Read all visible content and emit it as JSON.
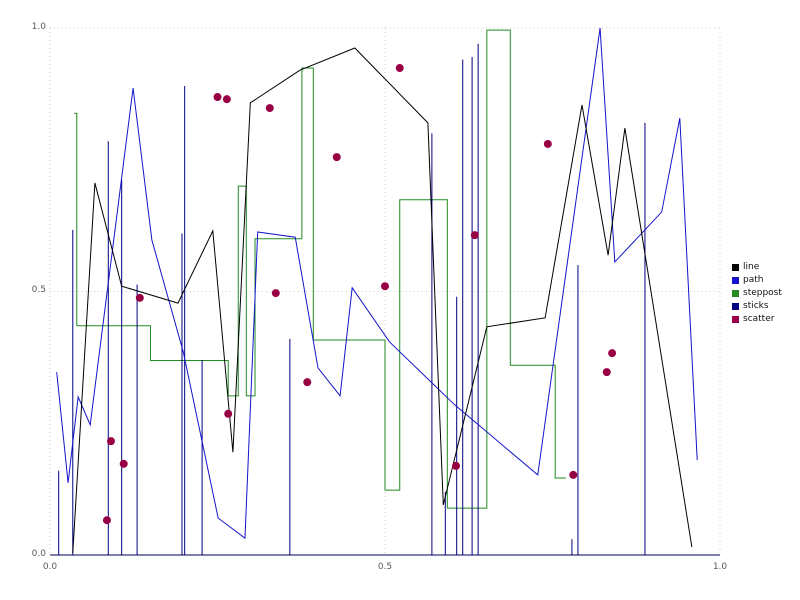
{
  "chart_data": {
    "type": "line",
    "title": "",
    "xlabel": "",
    "ylabel": "",
    "xlim": [
      0.0,
      1.0
    ],
    "ylim": [
      0.0,
      1.0
    ],
    "xticks": [
      "0.0",
      "0.5",
      "1.0"
    ],
    "yticks": [
      "0.0",
      "0.5",
      "1.0"
    ],
    "grid": "dotted",
    "grid_color": "#c9cfc9",
    "axis_color": "#000060",
    "legend_position": "right",
    "series": [
      {
        "name": "line",
        "type": "line",
        "color": "#000000",
        "x": [
          0.034,
          0.067,
          0.107,
          0.191,
          0.243,
          0.273,
          0.299,
          0.373,
          0.455,
          0.564,
          0.587,
          0.652,
          0.739,
          0.794,
          0.833,
          0.858,
          0.958
        ],
        "y": [
          0.004,
          0.706,
          0.51,
          0.478,
          0.615,
          0.195,
          0.858,
          0.92,
          0.962,
          0.82,
          0.095,
          0.433,
          0.45,
          0.854,
          0.569,
          0.81,
          0.015
        ]
      },
      {
        "name": "path",
        "type": "line",
        "color": "#1414cc",
        "x": [
          0.01,
          0.027,
          0.042,
          0.06,
          0.124,
          0.152,
          0.199,
          0.251,
          0.291,
          0.31,
          0.366,
          0.4,
          0.433,
          0.451,
          0.507,
          0.604,
          0.728,
          0.821,
          0.843,
          0.913,
          0.94,
          0.966
        ],
        "y": [
          0.347,
          0.137,
          0.3,
          0.247,
          0.886,
          0.598,
          0.385,
          0.07,
          0.032,
          0.613,
          0.603,
          0.355,
          0.302,
          0.507,
          0.404,
          0.285,
          0.152,
          1.0,
          0.556,
          0.651,
          0.829,
          0.18
        ]
      },
      {
        "name": "steppost",
        "type": "steps-post",
        "color": "#228b22",
        "x": [
          0.036,
          0.04,
          0.15,
          0.266,
          0.281,
          0.293,
          0.306,
          0.376,
          0.393,
          0.5,
          0.522,
          0.593,
          0.652,
          0.687,
          0.754,
          0.77
        ],
        "y": [
          0.838,
          0.435,
          0.369,
          0.302,
          0.7,
          0.302,
          0.6,
          0.924,
          0.408,
          0.123,
          0.674,
          0.089,
          0.996,
          0.36,
          0.146,
          0.146
        ]
      },
      {
        "name": "sticks",
        "type": "sticks",
        "color": "#000080",
        "x": [
          0.013,
          0.034,
          0.087,
          0.107,
          0.13,
          0.197,
          0.201,
          0.227,
          0.358,
          0.57,
          0.59,
          0.607,
          0.616,
          0.63,
          0.639,
          0.779,
          0.788,
          0.888
        ],
        "y": [
          0.16,
          0.617,
          0.785,
          0.712,
          0.513,
          0.61,
          0.89,
          0.37,
          0.41,
          0.8,
          0.12,
          0.49,
          0.94,
          0.945,
          0.97,
          0.03,
          0.55,
          0.82
        ]
      },
      {
        "name": "scatter",
        "type": "scatter",
        "color": "#990044",
        "marker_radius": 4,
        "x": [
          0.25,
          0.264,
          0.328,
          0.522,
          0.428,
          0.743,
          0.634,
          0.337,
          0.5,
          0.134,
          0.839,
          0.831,
          0.384,
          0.266,
          0.091,
          0.11,
          0.606,
          0.781,
          0.085
        ],
        "y": [
          0.869,
          0.865,
          0.848,
          0.924,
          0.755,
          0.78,
          0.607,
          0.497,
          0.51,
          0.488,
          0.383,
          0.347,
          0.328,
          0.268,
          0.216,
          0.173,
          0.169,
          0.152,
          0.066
        ]
      }
    ]
  },
  "legend": {
    "items": [
      "line",
      "path",
      "steppost",
      "sticks",
      "scatter"
    ]
  }
}
